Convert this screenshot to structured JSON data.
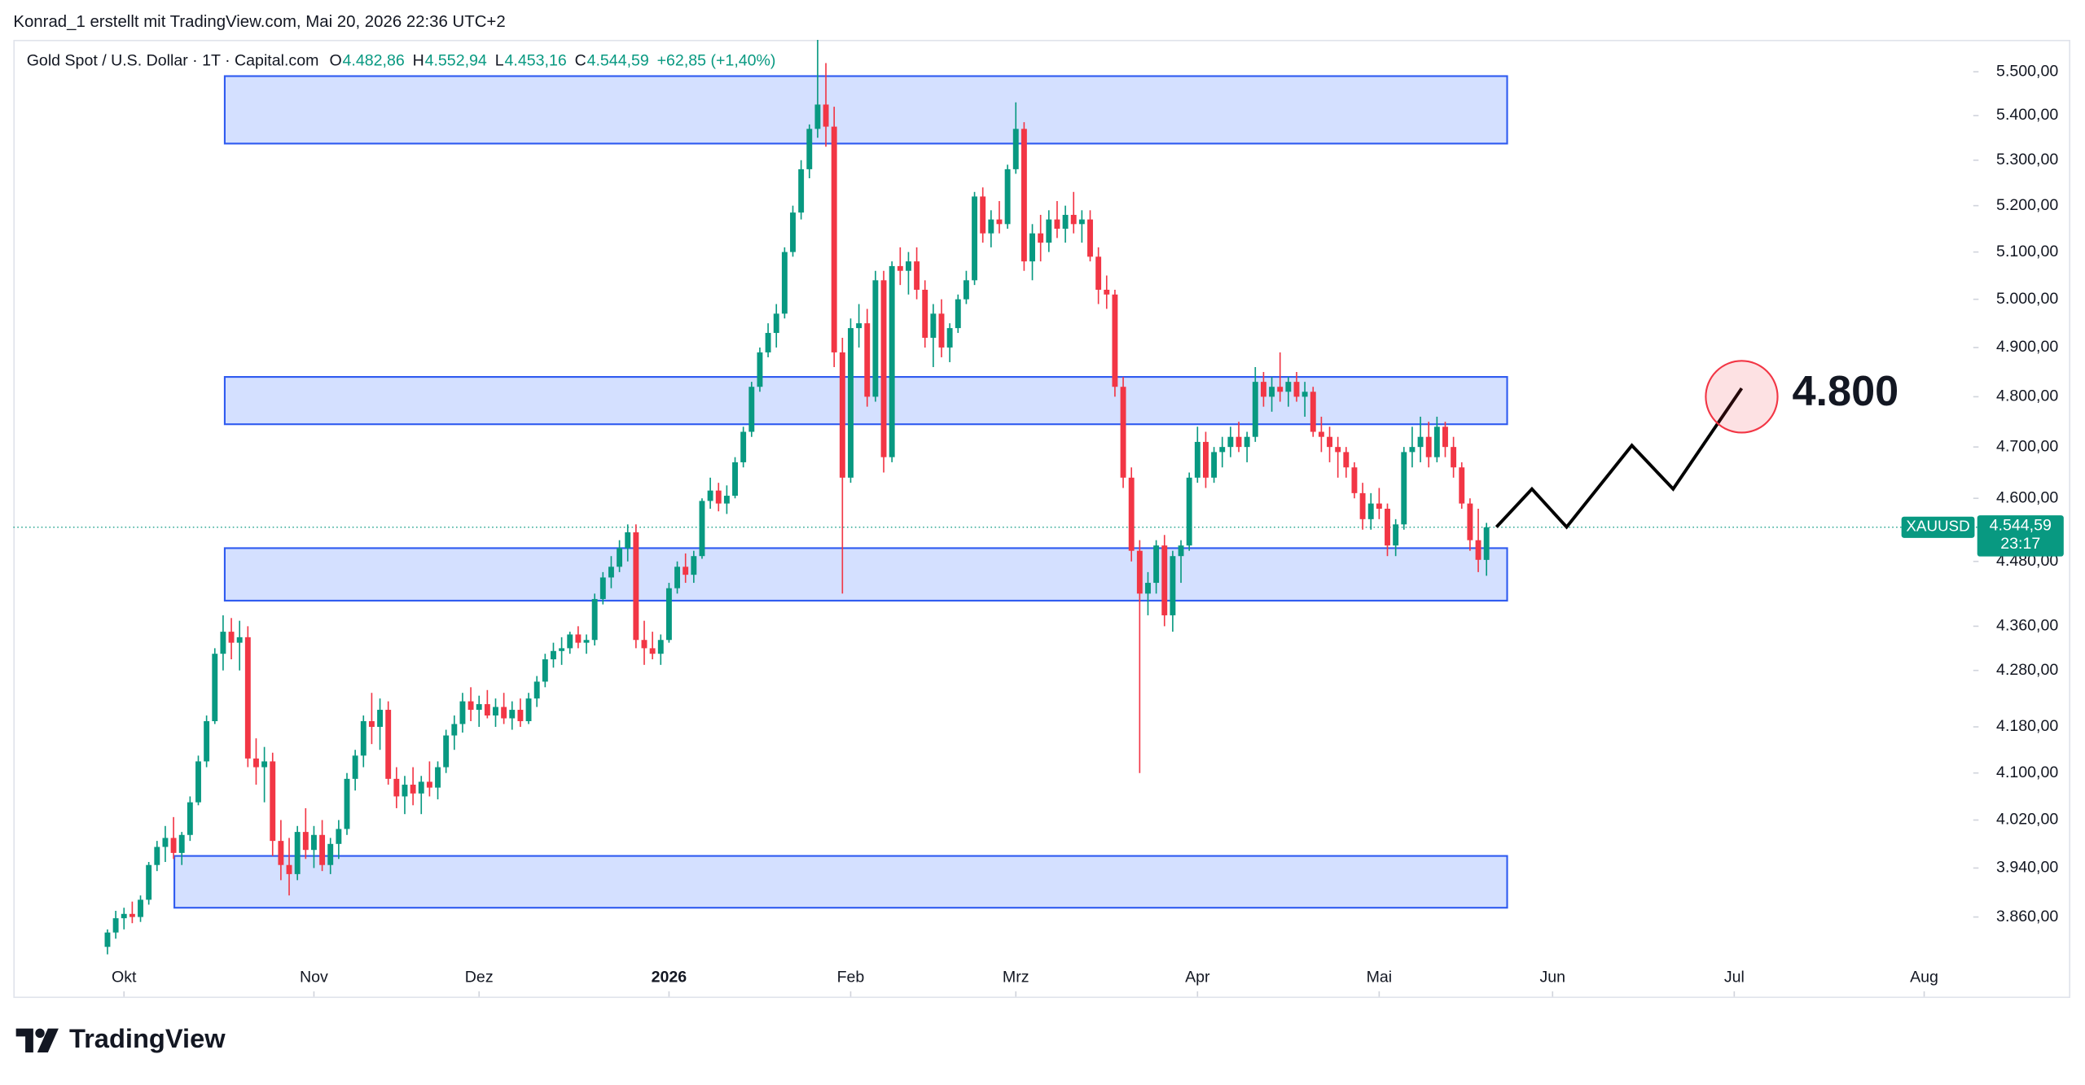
{
  "header": "Konrad_1 erstellt mit TradingView.com, Mai 20, 2026 22:36 UTC+2",
  "footer": "TradingView",
  "chart_data": {
    "type": "candlestick",
    "title": "Gold Spot / U.S. Dollar · 1T · Capital.com",
    "legend": {
      "keys": [
        "O",
        "H",
        "L",
        "C"
      ],
      "value_labels": [
        "4.482,86",
        "4.552,94",
        "4.453,16",
        "4.544,59"
      ],
      "change": "+62,85 (+1,40%)"
    },
    "up_color": "#089981",
    "down_color": "#f23645",
    "log_scale": true,
    "ylim": [
      3792,
      5574
    ],
    "yticks": [
      {
        "value": 5500,
        "label": "5.500,00"
      },
      {
        "value": 5400,
        "label": "5.400,00"
      },
      {
        "value": 5300,
        "label": "5.300,00"
      },
      {
        "value": 5200,
        "label": "5.200,00"
      },
      {
        "value": 5100,
        "label": "5.100,00"
      },
      {
        "value": 5000,
        "label": "5.000,00"
      },
      {
        "value": 4900,
        "label": "4.900,00"
      },
      {
        "value": 4800,
        "label": "4.800,00"
      },
      {
        "value": 4700,
        "label": "4.700,00"
      },
      {
        "value": 4600,
        "label": "4.600,00"
      },
      {
        "value": 4480,
        "label": "4.480,00"
      },
      {
        "value": 4360,
        "label": "4.360,00"
      },
      {
        "value": 4280,
        "label": "4.280,00"
      },
      {
        "value": 4180,
        "label": "4.180,00"
      },
      {
        "value": 4100,
        "label": "4.100,00"
      },
      {
        "value": 4020,
        "label": "4.020,00"
      },
      {
        "value": 3940,
        "label": "3.940,00"
      },
      {
        "value": 3860,
        "label": "3.860,00"
      }
    ],
    "xlim": [
      -11.4,
      225.3
    ],
    "xticks": [
      {
        "value": 2,
        "label": "Okt"
      },
      {
        "value": 25,
        "label": "Nov"
      },
      {
        "value": 45,
        "label": "Dez"
      },
      {
        "value": 68,
        "label": "2026"
      },
      {
        "value": 90,
        "label": "Feb"
      },
      {
        "value": 110,
        "label": "Mrz"
      },
      {
        "value": 132,
        "label": "Apr"
      },
      {
        "value": 154,
        "label": "Mai"
      },
      {
        "value": 175,
        "label": "Jun"
      },
      {
        "value": 197,
        "label": "Jul"
      },
      {
        "value": 220,
        "label": "Aug"
      }
    ],
    "ohlc": [
      [
        3812,
        3840,
        3800,
        3835
      ],
      [
        3835,
        3870,
        3825,
        3858
      ],
      [
        3858,
        3875,
        3840,
        3865
      ],
      [
        3865,
        3885,
        3850,
        3860
      ],
      [
        3860,
        3895,
        3852,
        3888
      ],
      [
        3888,
        3950,
        3880,
        3945
      ],
      [
        3945,
        3985,
        3935,
        3975
      ],
      [
        3975,
        4010,
        3950,
        3990
      ],
      [
        3990,
        4025,
        3955,
        3965
      ],
      [
        3965,
        4000,
        3945,
        3995
      ],
      [
        3995,
        4060,
        3985,
        4050
      ],
      [
        4050,
        4130,
        4045,
        4120
      ],
      [
        4120,
        4200,
        4110,
        4190
      ],
      [
        4190,
        4320,
        4185,
        4310
      ],
      [
        4310,
        4380,
        4280,
        4350
      ],
      [
        4350,
        4375,
        4300,
        4330
      ],
      [
        4330,
        4370,
        4280,
        4340
      ],
      [
        4340,
        4360,
        4110,
        4125
      ],
      [
        4125,
        4160,
        4080,
        4110
      ],
      [
        4110,
        4145,
        4050,
        4120
      ],
      [
        4120,
        4135,
        3960,
        3985
      ],
      [
        3985,
        4020,
        3920,
        3945
      ],
      [
        3945,
        3990,
        3895,
        3930
      ],
      [
        3930,
        4010,
        3920,
        4000
      ],
      [
        4000,
        4040,
        3955,
        3970
      ],
      [
        3970,
        4010,
        3940,
        3995
      ],
      [
        3995,
        4020,
        3935,
        3945
      ],
      [
        3945,
        3990,
        3930,
        3980
      ],
      [
        3980,
        4020,
        3955,
        4005
      ],
      [
        4005,
        4100,
        3995,
        4090
      ],
      [
        4090,
        4140,
        4070,
        4130
      ],
      [
        4130,
        4200,
        4110,
        4190
      ],
      [
        4190,
        4240,
        4150,
        4180
      ],
      [
        4180,
        4230,
        4140,
        4210
      ],
      [
        4210,
        4225,
        4080,
        4090
      ],
      [
        4090,
        4110,
        4040,
        4060
      ],
      [
        4060,
        4095,
        4030,
        4080
      ],
      [
        4080,
        4110,
        4045,
        4065
      ],
      [
        4065,
        4095,
        4030,
        4085
      ],
      [
        4085,
        4120,
        4060,
        4075
      ],
      [
        4075,
        4120,
        4055,
        4110
      ],
      [
        4110,
        4175,
        4100,
        4165
      ],
      [
        4165,
        4200,
        4140,
        4185
      ],
      [
        4185,
        4240,
        4170,
        4225
      ],
      [
        4225,
        4250,
        4190,
        4210
      ],
      [
        4210,
        4235,
        4180,
        4220
      ],
      [
        4220,
        4245,
        4195,
        4200
      ],
      [
        4200,
        4230,
        4180,
        4215
      ],
      [
        4215,
        4240,
        4185,
        4195
      ],
      [
        4195,
        4225,
        4175,
        4210
      ],
      [
        4210,
        4230,
        4180,
        4190
      ],
      [
        4190,
        4240,
        4185,
        4230
      ],
      [
        4230,
        4270,
        4215,
        4260
      ],
      [
        4260,
        4310,
        4250,
        4300
      ],
      [
        4300,
        4330,
        4285,
        4315
      ],
      [
        4315,
        4340,
        4290,
        4320
      ],
      [
        4320,
        4350,
        4310,
        4345
      ],
      [
        4345,
        4360,
        4320,
        4330
      ],
      [
        4330,
        4345,
        4310,
        4335
      ],
      [
        4335,
        4420,
        4325,
        4410
      ],
      [
        4410,
        4460,
        4400,
        4450
      ],
      [
        4450,
        4490,
        4430,
        4470
      ],
      [
        4470,
        4520,
        4460,
        4505
      ],
      [
        4505,
        4550,
        4480,
        4535
      ],
      [
        4535,
        4550,
        4320,
        4335
      ],
      [
        4335,
        4370,
        4290,
        4320
      ],
      [
        4320,
        4350,
        4300,
        4310
      ],
      [
        4310,
        4345,
        4290,
        4335
      ],
      [
        4335,
        4440,
        4330,
        4430
      ],
      [
        4430,
        4480,
        4420,
        4470
      ],
      [
        4470,
        4495,
        4440,
        4455
      ],
      [
        4455,
        4500,
        4440,
        4490
      ],
      [
        4490,
        4600,
        4485,
        4595
      ],
      [
        4595,
        4640,
        4580,
        4615
      ],
      [
        4615,
        4630,
        4575,
        4590
      ],
      [
        4590,
        4625,
        4570,
        4605
      ],
      [
        4605,
        4680,
        4600,
        4670
      ],
      [
        4670,
        4740,
        4660,
        4730
      ],
      [
        4730,
        4830,
        4720,
        4820
      ],
      [
        4820,
        4900,
        4810,
        4890
      ],
      [
        4890,
        4950,
        4880,
        4930
      ],
      [
        4930,
        4990,
        4900,
        4970
      ],
      [
        4970,
        5110,
        4960,
        5100
      ],
      [
        5100,
        5200,
        5090,
        5185
      ],
      [
        5185,
        5300,
        5170,
        5280
      ],
      [
        5280,
        5380,
        5260,
        5370
      ],
      [
        5370,
        5590,
        5350,
        5425
      ],
      [
        5425,
        5520,
        5330,
        5375
      ],
      [
        5375,
        5420,
        4860,
        4890
      ],
      [
        4890,
        4920,
        4420,
        4640
      ],
      [
        4640,
        4960,
        4630,
        4940
      ],
      [
        4940,
        4990,
        4900,
        4950
      ],
      [
        4950,
        4980,
        4780,
        4800
      ],
      [
        4800,
        5060,
        4790,
        5040
      ],
      [
        5040,
        5060,
        4650,
        4680
      ],
      [
        4680,
        5080,
        4670,
        5070
      ],
      [
        5070,
        5110,
        5030,
        5060
      ],
      [
        5060,
        5100,
        5010,
        5080
      ],
      [
        5080,
        5110,
        5000,
        5020
      ],
      [
        5020,
        5040,
        4900,
        4920
      ],
      [
        4920,
        4990,
        4860,
        4970
      ],
      [
        4970,
        5000,
        4880,
        4900
      ],
      [
        4900,
        4950,
        4870,
        4940
      ],
      [
        4940,
        5010,
        4930,
        5000
      ],
      [
        5000,
        5060,
        4990,
        5040
      ],
      [
        5040,
        5230,
        5030,
        5220
      ],
      [
        5220,
        5240,
        5120,
        5140
      ],
      [
        5140,
        5190,
        5110,
        5170
      ],
      [
        5170,
        5210,
        5140,
        5160
      ],
      [
        5160,
        5290,
        5150,
        5280
      ],
      [
        5280,
        5430,
        5270,
        5370
      ],
      [
        5370,
        5385,
        5060,
        5080
      ],
      [
        5080,
        5160,
        5040,
        5140
      ],
      [
        5140,
        5180,
        5080,
        5120
      ],
      [
        5120,
        5190,
        5100,
        5170
      ],
      [
        5170,
        5210,
        5130,
        5150
      ],
      [
        5150,
        5200,
        5120,
        5180
      ],
      [
        5180,
        5230,
        5140,
        5160
      ],
      [
        5160,
        5190,
        5120,
        5170
      ],
      [
        5170,
        5190,
        5080,
        5090
      ],
      [
        5090,
        5110,
        4990,
        5020
      ],
      [
        5020,
        5050,
        4980,
        5010
      ],
      [
        5010,
        5020,
        4800,
        4820
      ],
      [
        4820,
        4840,
        4620,
        4640
      ],
      [
        4640,
        4660,
        4480,
        4500
      ],
      [
        4500,
        4520,
        4100,
        4420
      ],
      [
        4420,
        4460,
        4380,
        4440
      ],
      [
        4440,
        4520,
        4420,
        4510
      ],
      [
        4510,
        4530,
        4360,
        4380
      ],
      [
        4380,
        4500,
        4350,
        4490
      ],
      [
        4490,
        4520,
        4440,
        4510
      ],
      [
        4510,
        4650,
        4500,
        4640
      ],
      [
        4640,
        4740,
        4630,
        4710
      ],
      [
        4710,
        4730,
        4620,
        4640
      ],
      [
        4640,
        4700,
        4630,
        4690
      ],
      [
        4690,
        4720,
        4660,
        4700
      ],
      [
        4700,
        4740,
        4680,
        4720
      ],
      [
        4720,
        4750,
        4690,
        4700
      ],
      [
        4700,
        4730,
        4670,
        4720
      ],
      [
        4720,
        4860,
        4710,
        4830
      ],
      [
        4830,
        4850,
        4780,
        4800
      ],
      [
        4800,
        4840,
        4770,
        4820
      ],
      [
        4820,
        4890,
        4790,
        4810
      ],
      [
        4810,
        4840,
        4780,
        4830
      ],
      [
        4830,
        4850,
        4790,
        4800
      ],
      [
        4800,
        4830,
        4760,
        4810
      ],
      [
        4810,
        4820,
        4720,
        4730
      ],
      [
        4730,
        4760,
        4690,
        4720
      ],
      [
        4720,
        4740,
        4670,
        4700
      ],
      [
        4700,
        4720,
        4640,
        4690
      ],
      [
        4690,
        4700,
        4640,
        4660
      ],
      [
        4660,
        4670,
        4600,
        4610
      ],
      [
        4610,
        4630,
        4540,
        4560
      ],
      [
        4560,
        4610,
        4540,
        4590
      ],
      [
        4590,
        4620,
        4560,
        4580
      ],
      [
        4580,
        4590,
        4490,
        4510
      ],
      [
        4510,
        4560,
        4490,
        4550
      ],
      [
        4550,
        4700,
        4540,
        4690
      ],
      [
        4690,
        4740,
        4660,
        4700
      ],
      [
        4700,
        4760,
        4670,
        4720
      ],
      [
        4720,
        4750,
        4660,
        4680
      ],
      [
        4680,
        4760,
        4670,
        4740
      ],
      [
        4740,
        4750,
        4680,
        4700
      ],
      [
        4700,
        4720,
        4640,
        4660
      ],
      [
        4660,
        4670,
        4580,
        4590
      ],
      [
        4590,
        4600,
        4500,
        4520
      ],
      [
        4520,
        4580,
        4460,
        4483
      ],
      [
        4482.86,
        4552.94,
        4453.16,
        4544.59
      ]
    ],
    "zones": [
      {
        "x0": 14.2,
        "x1": 169.5,
        "low": 5337,
        "high": 5490
      },
      {
        "x0": 14.2,
        "x1": 169.5,
        "low": 4745,
        "high": 4840
      },
      {
        "x0": 14.2,
        "x1": 169.5,
        "low": 4407,
        "high": 4505
      },
      {
        "x0": 8.1,
        "x1": 169.5,
        "low": 3875,
        "high": 3960
      }
    ],
    "projection": {
      "x": [
        168.2,
        172.5,
        176.7,
        184.6,
        189.6,
        197.9
      ],
      "y": [
        4545,
        4618,
        4545,
        4703,
        4618,
        4817
      ]
    },
    "target": {
      "x": 197.9,
      "value": 4800,
      "label": "4.800"
    },
    "last_price": {
      "symbol": "XAUUSD",
      "label": "4.544,59",
      "countdown": "23:17"
    }
  }
}
